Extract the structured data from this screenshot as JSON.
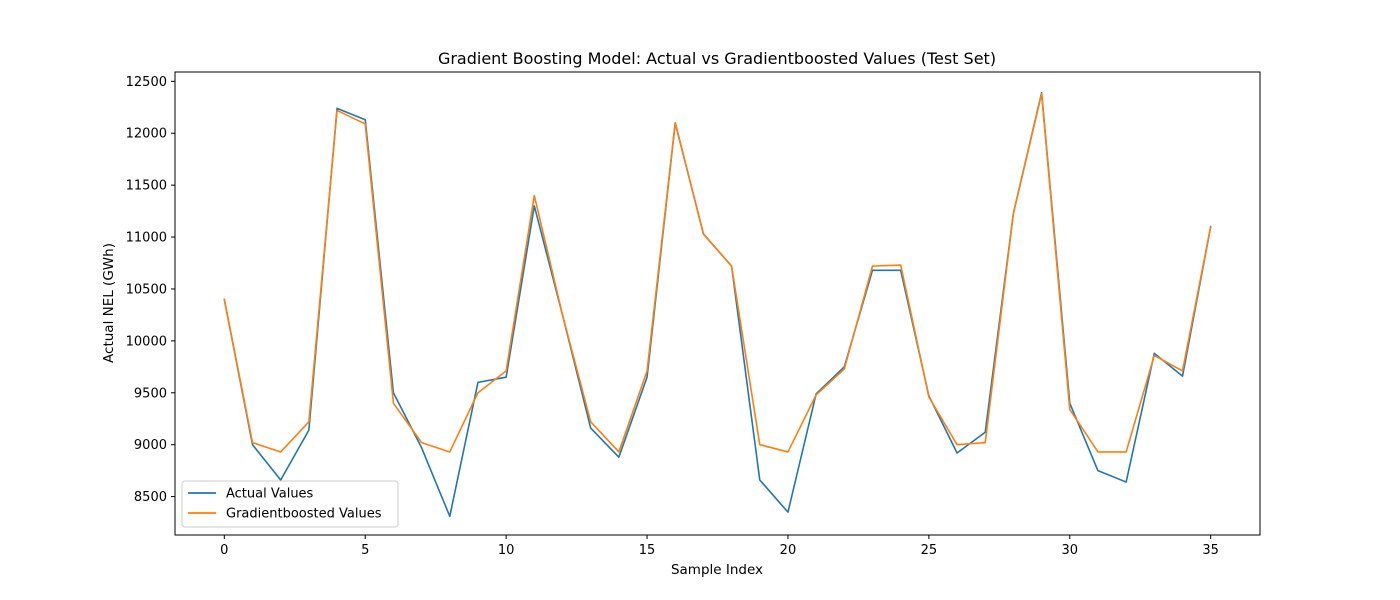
{
  "chart_data": {
    "type": "line",
    "title": "Gradient Boosting Model: Actual vs Gradientboosted Values (Test Set)",
    "xlabel": "Sample Index",
    "ylabel": "Actual NEL (GWh)",
    "xlim": [
      -1.75,
      36.75
    ],
    "ylim": [
      8130,
      12590
    ],
    "xticks": [
      0,
      5,
      10,
      15,
      20,
      25,
      30,
      35
    ],
    "yticks": [
      8500,
      9000,
      9500,
      10000,
      10500,
      11000,
      11500,
      12000,
      12500
    ],
    "grid": false,
    "legend_position": "lower-left",
    "x": [
      0,
      1,
      2,
      3,
      4,
      5,
      6,
      7,
      8,
      9,
      10,
      11,
      12,
      13,
      14,
      15,
      16,
      17,
      18,
      19,
      20,
      21,
      22,
      23,
      24,
      25,
      26,
      27,
      28,
      29,
      30,
      31,
      32,
      33,
      34,
      35
    ],
    "series": [
      {
        "name": "Actual Values",
        "color": "#1f77b4",
        "values": [
          10400,
          9000,
          8660,
          9140,
          12240,
          12130,
          9500,
          8970,
          8310,
          9600,
          9650,
          11300,
          10250,
          9160,
          8880,
          9650,
          12100,
          11030,
          10720,
          8660,
          8350,
          9490,
          9750,
          10680,
          10680,
          9470,
          8920,
          9120,
          11230,
          12390,
          9400,
          8750,
          8640,
          9880,
          9660,
          11100
        ]
      },
      {
        "name": "Gradientboosted Values",
        "color": "#ff7f0e",
        "values": [
          10400,
          9020,
          8930,
          9220,
          12220,
          12090,
          9400,
          9020,
          8930,
          9500,
          9710,
          11400,
          10250,
          9220,
          8930,
          9710,
          12100,
          11030,
          10720,
          9000,
          8930,
          9480,
          9730,
          10720,
          10730,
          9460,
          9000,
          9020,
          11230,
          12380,
          9340,
          8930,
          8930,
          9860,
          9710,
          11100
        ]
      }
    ]
  }
}
